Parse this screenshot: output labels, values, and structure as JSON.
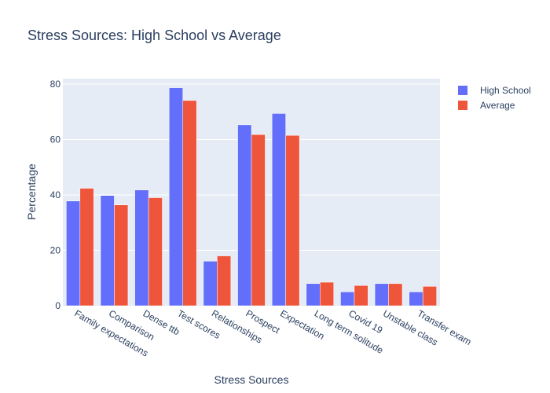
{
  "chart_data": {
    "type": "bar",
    "title": "Stress Sources: High School vs Average",
    "xlabel": "Stress Sources",
    "ylabel": "Percentage",
    "ylim": [
      0,
      82
    ],
    "yticks": [
      0,
      20,
      40,
      60,
      80
    ],
    "grid": true,
    "legend_position": "top-right",
    "categories": [
      "Family expectations",
      "Comparison",
      "Dense ttb",
      "Test scores",
      "Relationships",
      "Prospect",
      "Expectation",
      "Long term solitude",
      "Covid 19",
      "Unstable class",
      "Transfer exam"
    ],
    "series": [
      {
        "name": "High School",
        "color": "#636efa",
        "values": [
          37.8,
          39.8,
          41.8,
          78.7,
          16.1,
          65.3,
          69.4,
          8.0,
          5.0,
          8.0,
          5.0
        ]
      },
      {
        "name": "Average",
        "color": "#ef553b",
        "values": [
          42.4,
          36.4,
          39.0,
          74.1,
          18.0,
          61.8,
          61.5,
          8.5,
          7.3,
          8.0,
          7.0
        ]
      }
    ]
  },
  "colors": {
    "plot_background": "#e5ecf6",
    "gridline": "#ffffff",
    "text": "#2a3f5f"
  }
}
